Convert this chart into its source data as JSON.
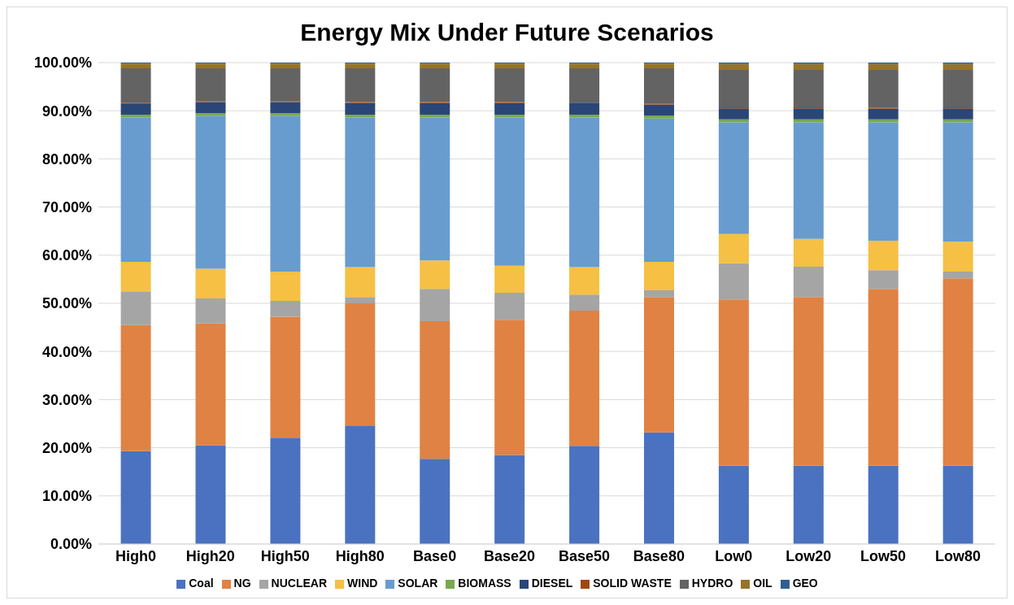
{
  "chart_data": {
    "type": "bar",
    "stacked": true,
    "title": "Energy Mix Under Future Scenarios",
    "categories": [
      "High0",
      "High20",
      "High50",
      "High80",
      "Base0",
      "Base20",
      "Base50",
      "Base80",
      "Low0",
      "Low20",
      "Low50",
      "Low80"
    ],
    "series": [
      {
        "name": "Coal",
        "color": "#4a72c0",
        "values": [
          19.3,
          20.5,
          22.1,
          24.6,
          17.7,
          18.5,
          20.4,
          23.2,
          16.3,
          16.3,
          16.3,
          16.3
        ]
      },
      {
        "name": "NG",
        "color": "#e08243",
        "values": [
          26.2,
          25.3,
          25.1,
          25.4,
          28.6,
          28.1,
          28.1,
          28.1,
          34.5,
          35.0,
          36.7,
          38.9
        ]
      },
      {
        "name": "NUCLEAR",
        "color": "#a5a5a5",
        "values": [
          7.0,
          5.2,
          3.3,
          1.3,
          6.7,
          5.6,
          3.3,
          1.4,
          7.5,
          6.3,
          3.9,
          1.4
        ]
      },
      {
        "name": "WIND",
        "color": "#f5c043",
        "values": [
          6.1,
          6.2,
          6.1,
          6.2,
          5.9,
          5.6,
          5.7,
          5.9,
          6.1,
          5.8,
          6.1,
          6.2
        ]
      },
      {
        "name": "SOLAR",
        "color": "#689ccf",
        "values": [
          30.0,
          31.7,
          32.3,
          31.1,
          29.7,
          30.8,
          31.1,
          29.8,
          23.2,
          24.2,
          24.6,
          24.8
        ]
      },
      {
        "name": "BIOMASS",
        "color": "#78a94e",
        "values": [
          0.6,
          0.6,
          0.6,
          0.6,
          0.6,
          0.6,
          0.6,
          0.6,
          0.6,
          0.6,
          0.6,
          0.6
        ]
      },
      {
        "name": "DIESEL",
        "color": "#2a4677",
        "values": [
          2.2,
          2.3,
          2.3,
          2.4,
          2.4,
          2.4,
          2.5,
          2.3,
          2.3,
          2.3,
          2.2,
          2.3
        ]
      },
      {
        "name": "SOLID WASTE",
        "color": "#9e480e",
        "values": [
          0.2,
          0.2,
          0.2,
          0.2,
          0.2,
          0.2,
          0,
          0.2,
          0.2,
          0.2,
          0.2,
          0.2
        ]
      },
      {
        "name": "HYDRO",
        "color": "#636363",
        "values": [
          7.2,
          6.8,
          6.8,
          7.0,
          7.0,
          7.0,
          7.1,
          7.3,
          7.8,
          7.8,
          7.9,
          7.8
        ]
      },
      {
        "name": "OIL",
        "color": "#957428",
        "values": [
          1.0,
          1.0,
          1.0,
          1.0,
          1.0,
          1.0,
          1.0,
          1.0,
          1.2,
          1.2,
          1.2,
          1.2
        ]
      },
      {
        "name": "GEO",
        "color": "#2f5e92",
        "values": [
          0.2,
          0.2,
          0.2,
          0.2,
          0.2,
          0.2,
          0.2,
          0.2,
          0.3,
          0.3,
          0.3,
          0.3
        ]
      }
    ],
    "ylim": [
      0,
      100
    ],
    "yticks": [
      {
        "value": 0,
        "label": "0.00%"
      },
      {
        "value": 10,
        "label": "10.00%"
      },
      {
        "value": 20,
        "label": "20.00%"
      },
      {
        "value": 30,
        "label": "30.00%"
      },
      {
        "value": 40,
        "label": "40.00%"
      },
      {
        "value": 50,
        "label": "50.00%"
      },
      {
        "value": 60,
        "label": "60.00%"
      },
      {
        "value": 70,
        "label": "70.00%"
      },
      {
        "value": 80,
        "label": "80.00%"
      },
      {
        "value": 90,
        "label": "90.00%"
      },
      {
        "value": 100,
        "label": "100.00%"
      }
    ],
    "grid": "y",
    "legend": "bottom"
  }
}
